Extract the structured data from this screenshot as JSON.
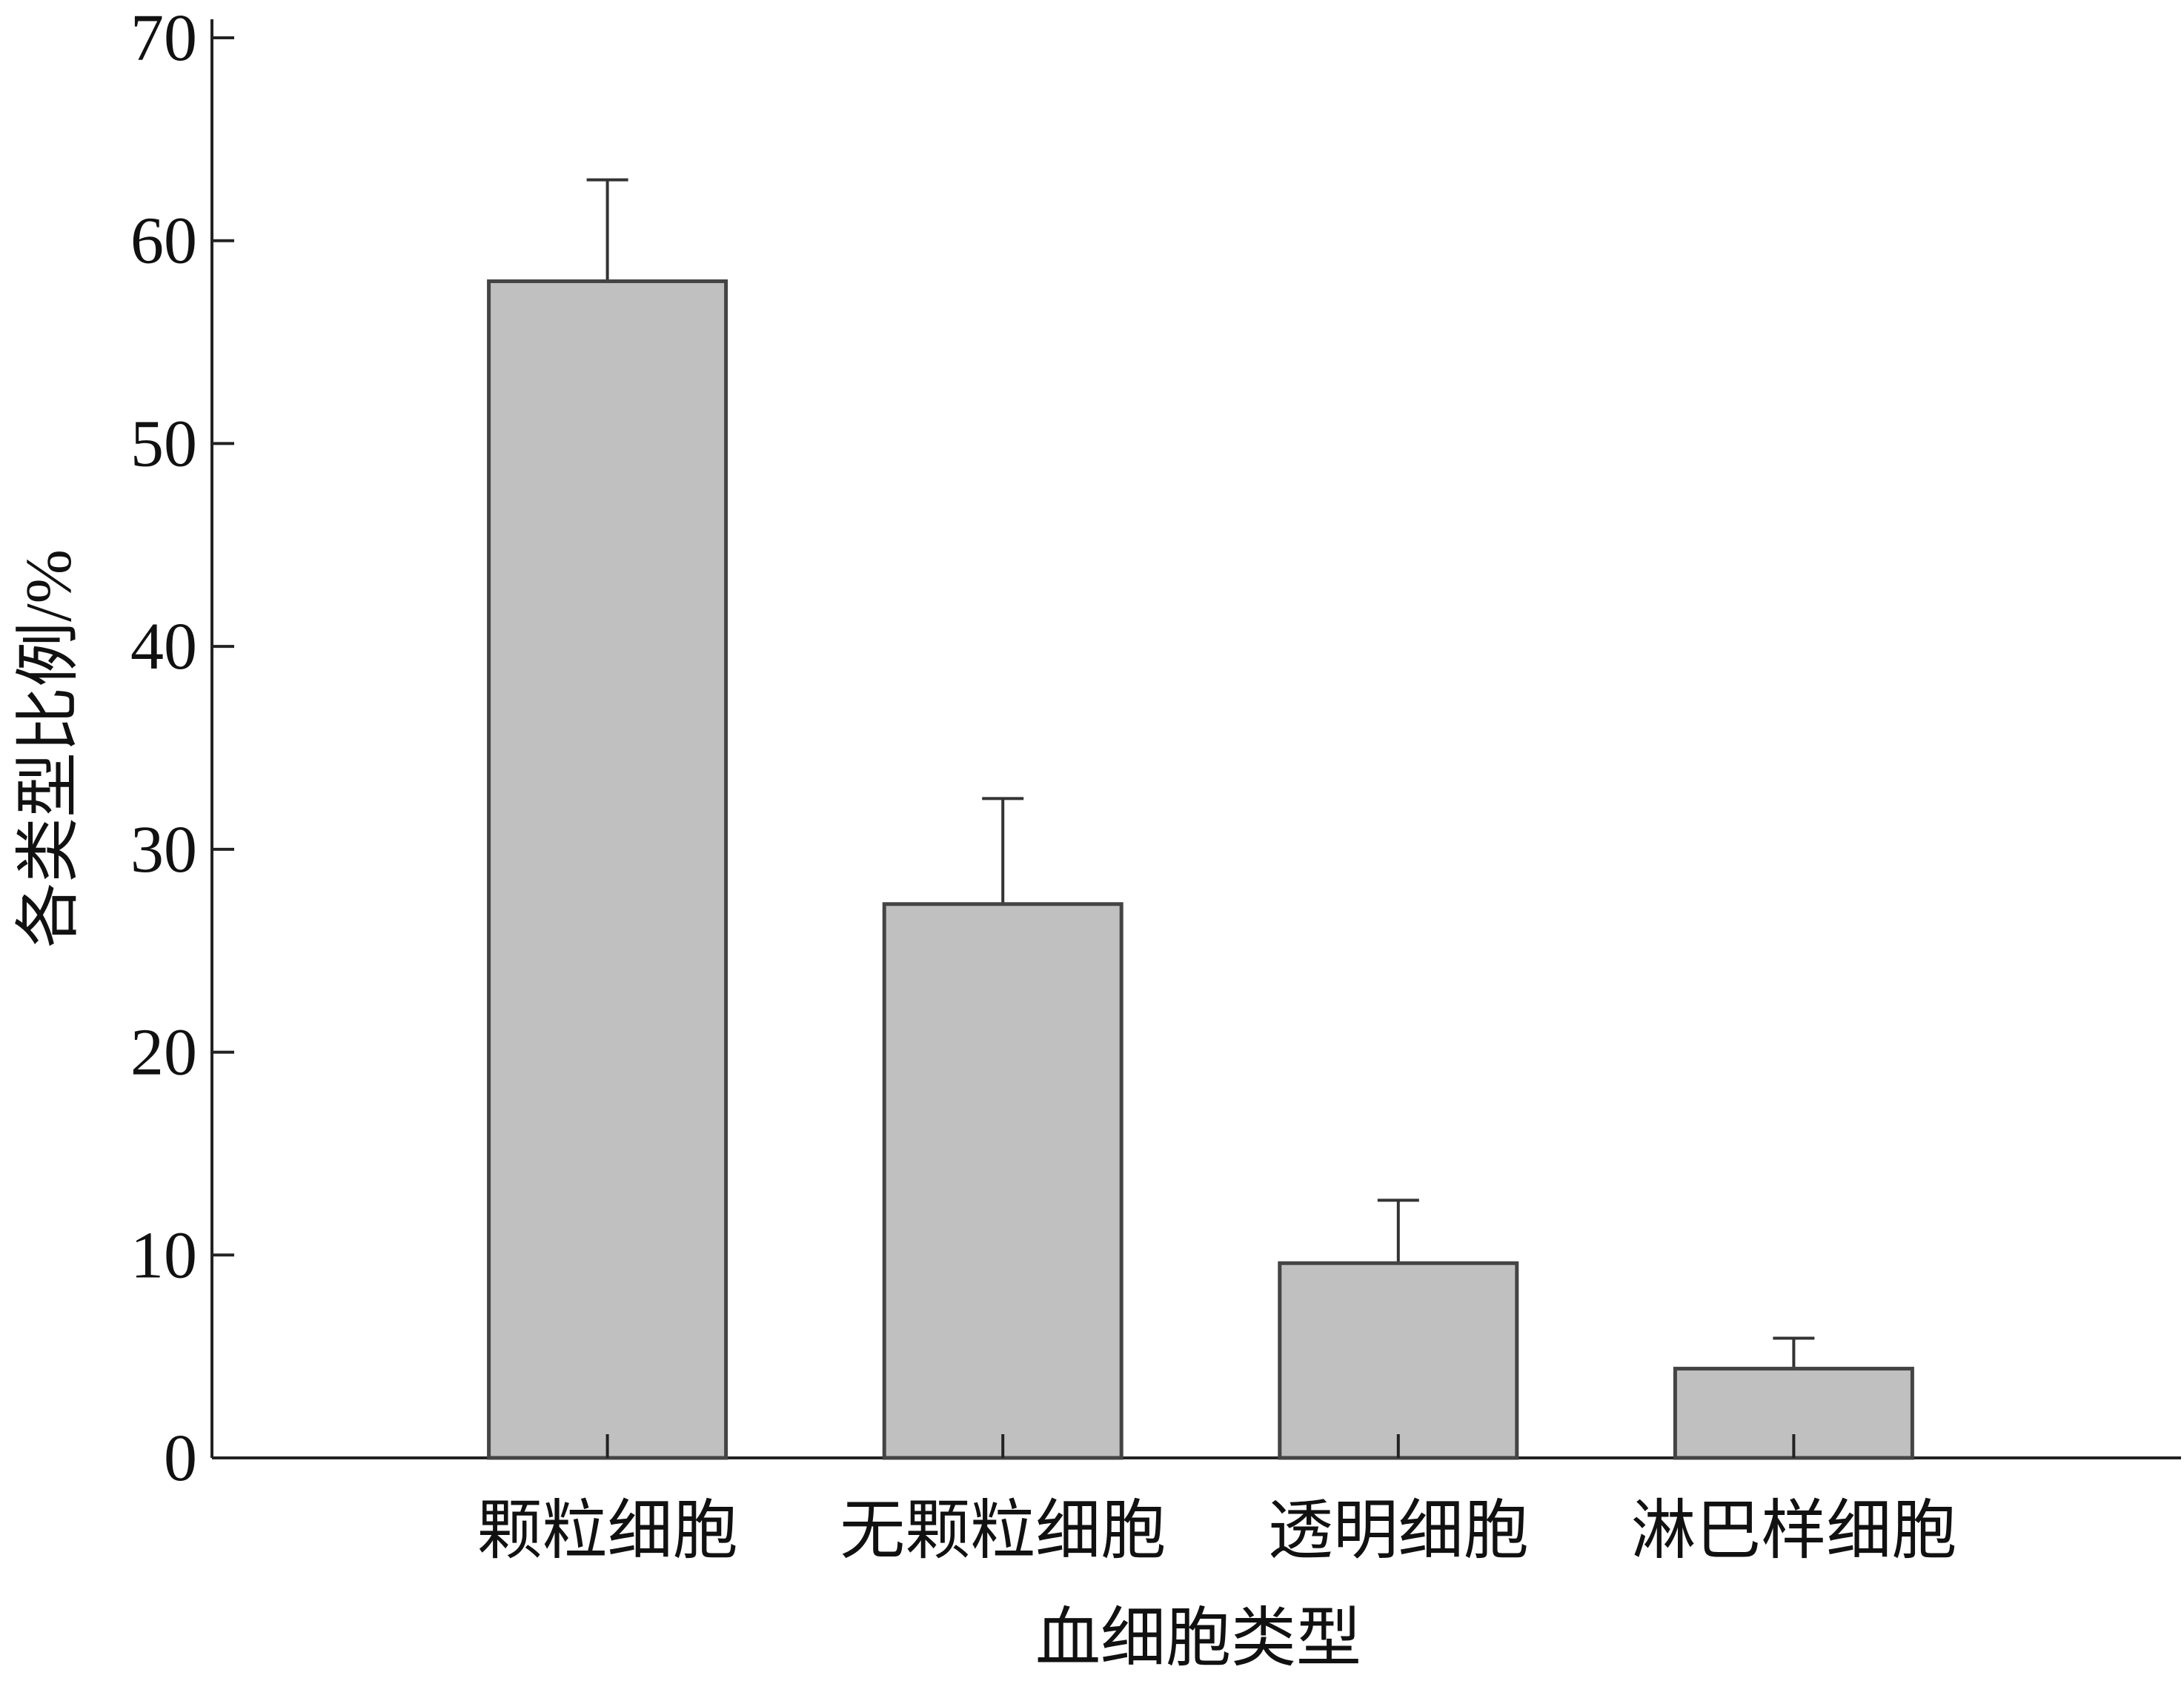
{
  "chart_data": {
    "type": "bar",
    "x_label": "血细胞类型",
    "y_label": "各类型比例/%",
    "categories": [
      "颗粒细胞",
      "无颗粒细胞",
      "透明细胞",
      "淋巴样细胞"
    ],
    "values": [
      58,
      27.3,
      9.6,
      4.4
    ],
    "errors": [
      5,
      5.2,
      3.1,
      1.5
    ],
    "color": "#c0c0c0",
    "ylim": [
      0,
      70
    ],
    "yticks": [
      0,
      10,
      20,
      30,
      40,
      50,
      60,
      70
    ]
  }
}
